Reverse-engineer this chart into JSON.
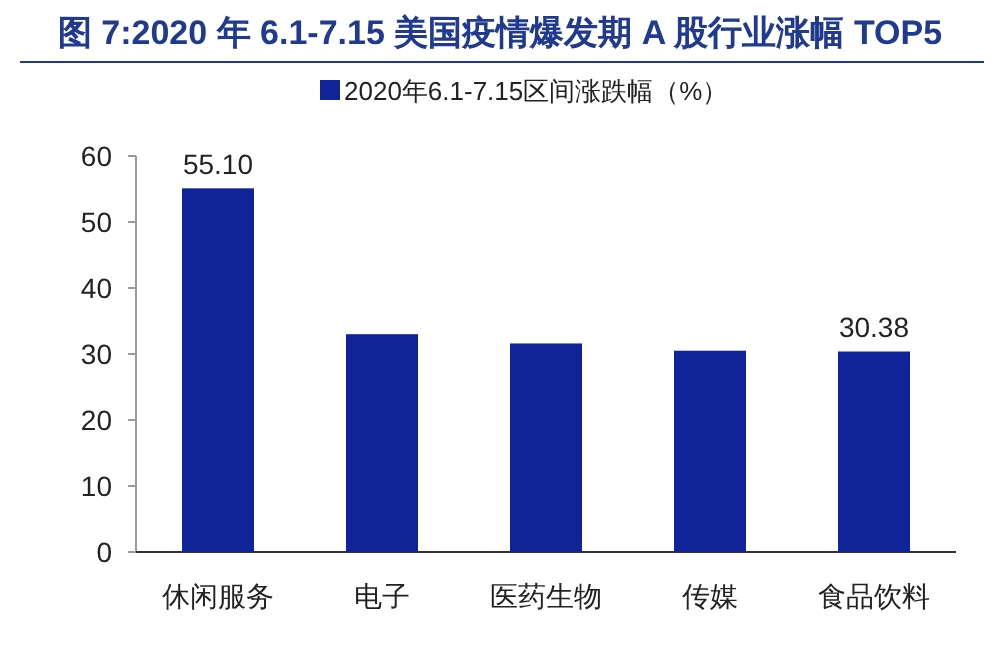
{
  "chart_data": {
    "type": "bar",
    "title": "图 7:2020 年 6.1-7.15 美国疫情爆发期 A 股行业涨幅 TOP5",
    "categories": [
      "休闲服务",
      "电子",
      "医药生物",
      "传媒",
      "食品饮料"
    ],
    "series": [
      {
        "name": "2020年6.1-7.15区间涨跌幅（%）",
        "color": "#0f2499",
        "values": [
          55.1,
          33.0,
          31.6,
          30.5,
          30.38
        ],
        "value_labels": [
          "55.10",
          null,
          null,
          null,
          "30.38"
        ]
      }
    ],
    "ylim": [
      0,
      60
    ],
    "yticks": [
      0,
      10,
      20,
      30,
      40,
      50,
      60
    ],
    "grid": false,
    "legend": "top"
  }
}
